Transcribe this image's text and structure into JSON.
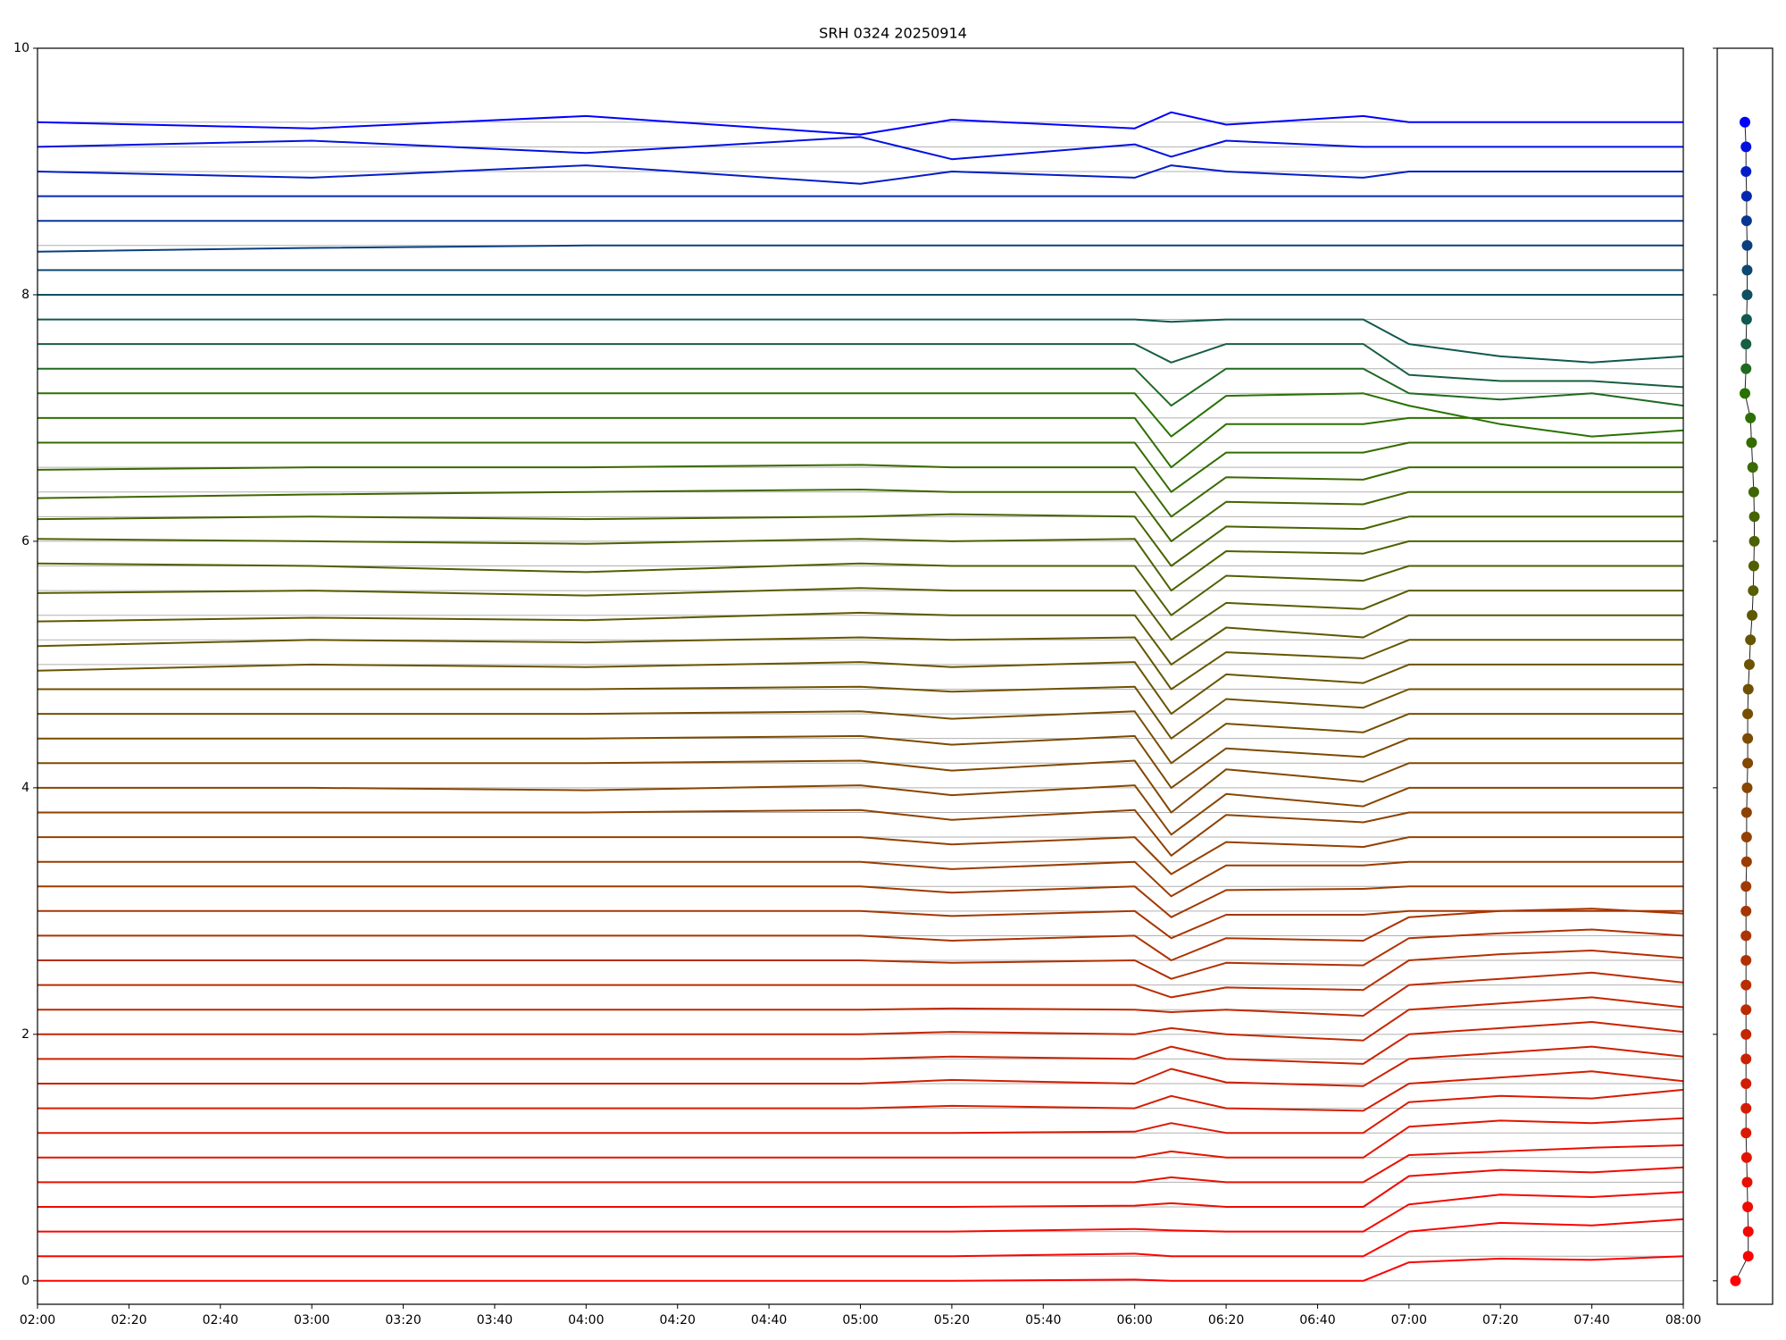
{
  "chart_data": [
    {
      "type": "line",
      "title": "SRH 0324 20250914",
      "x": [
        "02:00",
        "03:00",
        "04:00",
        "05:00",
        "05:20",
        "06:00",
        "06:08",
        "06:20",
        "06:50",
        "07:00",
        "07:20",
        "07:40",
        "08:00"
      ],
      "xlim": [
        "02:00",
        "08:00"
      ],
      "xticks": [
        "02:00",
        "02:20",
        "02:40",
        "03:00",
        "03:20",
        "03:40",
        "04:00",
        "04:20",
        "04:40",
        "05:00",
        "05:20",
        "05:40",
        "06:00",
        "06:20",
        "06:40",
        "07:00",
        "07:20",
        "07:40",
        "08:00"
      ],
      "ylim": [
        -0.19,
        10
      ],
      "yticks": [
        0,
        2,
        4,
        6,
        8,
        10
      ],
      "reference_lines": [
        0,
        0.2,
        0.4,
        0.6,
        0.8,
        1,
        1.2,
        1.4,
        1.6,
        1.8,
        2,
        2.2,
        2.4,
        2.6,
        2.8,
        3,
        3.2,
        3.4,
        3.6,
        3.8,
        4,
        4.2,
        4.4,
        4.6,
        4.8,
        5,
        5.2,
        5.4,
        5.6,
        5.8,
        6,
        6.2,
        6.4,
        6.6,
        6.8,
        7,
        7.2,
        7.4,
        7.6,
        7.8,
        8,
        8.2,
        8.4,
        8.6,
        8.8,
        9,
        9.2,
        9.4
      ],
      "series": [
        {
          "color": "#ff0000",
          "values": [
            0,
            0,
            0,
            0,
            0,
            0.01,
            0,
            0,
            0,
            0.15,
            0.18,
            0.17,
            0.2
          ]
        },
        {
          "color": "#fa0400",
          "values": [
            0.2,
            0.2,
            0.2,
            0.2,
            0.2,
            0.22,
            0.2,
            0.2,
            0.2,
            0.4,
            0.47,
            0.45,
            0.5
          ]
        },
        {
          "color": "#f40800",
          "values": [
            0.4,
            0.4,
            0.4,
            0.4,
            0.4,
            0.42,
            0.41,
            0.4,
            0.4,
            0.62,
            0.7,
            0.68,
            0.72
          ]
        },
        {
          "color": "#ee0c00",
          "values": [
            0.6,
            0.6,
            0.6,
            0.6,
            0.6,
            0.61,
            0.63,
            0.6,
            0.6,
            0.85,
            0.9,
            0.88,
            0.92
          ]
        },
        {
          "color": "#e81000",
          "values": [
            0.8,
            0.8,
            0.8,
            0.8,
            0.8,
            0.8,
            0.84,
            0.8,
            0.8,
            1.02,
            1.05,
            1.08,
            1.1
          ]
        },
        {
          "color": "#e21400",
          "values": [
            1,
            1,
            1,
            1,
            1,
            1,
            1.05,
            1,
            1,
            1.25,
            1.3,
            1.28,
            1.32
          ]
        },
        {
          "color": "#dc1800",
          "values": [
            1.2,
            1.2,
            1.2,
            1.2,
            1.2,
            1.21,
            1.28,
            1.2,
            1.2,
            1.45,
            1.5,
            1.48,
            1.55
          ]
        },
        {
          "color": "#d61c00",
          "values": [
            1.4,
            1.4,
            1.4,
            1.4,
            1.42,
            1.4,
            1.5,
            1.4,
            1.38,
            1.6,
            1.65,
            1.7,
            1.62
          ]
        },
        {
          "color": "#d01e00",
          "values": [
            1.6,
            1.6,
            1.6,
            1.6,
            1.63,
            1.6,
            1.72,
            1.61,
            1.58,
            1.8,
            1.85,
            1.9,
            1.82
          ]
        },
        {
          "color": "#ca2200",
          "values": [
            1.8,
            1.8,
            1.8,
            1.8,
            1.82,
            1.8,
            1.9,
            1.8,
            1.76,
            2,
            2.05,
            2.1,
            2.02
          ]
        },
        {
          "color": "#c42600",
          "values": [
            2,
            2,
            2,
            2,
            2.02,
            2,
            2.05,
            2,
            1.95,
            2.2,
            2.25,
            2.3,
            2.22
          ]
        },
        {
          "color": "#be2a00",
          "values": [
            2.2,
            2.2,
            2.2,
            2.2,
            2.21,
            2.2,
            2.18,
            2.2,
            2.15,
            2.4,
            2.45,
            2.5,
            2.42
          ]
        },
        {
          "color": "#b82e00",
          "values": [
            2.4,
            2.4,
            2.4,
            2.4,
            2.4,
            2.4,
            2.3,
            2.38,
            2.36,
            2.6,
            2.65,
            2.68,
            2.62
          ]
        },
        {
          "color": "#b23000",
          "values": [
            2.6,
            2.6,
            2.6,
            2.6,
            2.58,
            2.6,
            2.45,
            2.58,
            2.56,
            2.78,
            2.82,
            2.85,
            2.8
          ]
        },
        {
          "color": "#ac3400",
          "values": [
            2.8,
            2.8,
            2.8,
            2.8,
            2.76,
            2.8,
            2.6,
            2.78,
            2.76,
            2.95,
            3,
            3.02,
            2.98
          ]
        },
        {
          "color": "#a63600",
          "values": [
            3,
            3,
            3,
            3,
            2.96,
            3,
            2.78,
            2.97,
            2.97,
            3,
            3,
            3,
            3
          ]
        },
        {
          "color": "#a03a00",
          "values": [
            3.2,
            3.2,
            3.2,
            3.2,
            3.15,
            3.2,
            2.95,
            3.17,
            3.18,
            3.2,
            3.2,
            3.2,
            3.2
          ]
        },
        {
          "color": "#9a3c00",
          "values": [
            3.4,
            3.4,
            3.4,
            3.4,
            3.34,
            3.4,
            3.12,
            3.37,
            3.37,
            3.4,
            3.4,
            3.4,
            3.4
          ]
        },
        {
          "color": "#944000",
          "values": [
            3.6,
            3.6,
            3.6,
            3.6,
            3.54,
            3.6,
            3.3,
            3.56,
            3.52,
            3.6,
            3.6,
            3.6,
            3.6
          ]
        },
        {
          "color": "#8e4200",
          "values": [
            3.8,
            3.8,
            3.8,
            3.82,
            3.74,
            3.82,
            3.45,
            3.78,
            3.72,
            3.8,
            3.8,
            3.8,
            3.8
          ]
        },
        {
          "color": "#884600",
          "values": [
            4,
            4,
            3.98,
            4.02,
            3.94,
            4.02,
            3.62,
            3.95,
            3.85,
            4,
            4,
            4,
            4
          ]
        },
        {
          "color": "#824800",
          "values": [
            4.2,
            4.2,
            4.2,
            4.22,
            4.14,
            4.22,
            3.8,
            4.15,
            4.05,
            4.2,
            4.2,
            4.2,
            4.2
          ]
        },
        {
          "color": "#7c4a00",
          "values": [
            4.4,
            4.4,
            4.4,
            4.42,
            4.35,
            4.42,
            4,
            4.32,
            4.25,
            4.4,
            4.4,
            4.4,
            4.4
          ]
        },
        {
          "color": "#764e00",
          "values": [
            4.6,
            4.6,
            4.6,
            4.62,
            4.56,
            4.62,
            4.2,
            4.52,
            4.45,
            4.6,
            4.6,
            4.6,
            4.6
          ]
        },
        {
          "color": "#705000",
          "values": [
            4.8,
            4.8,
            4.8,
            4.82,
            4.78,
            4.82,
            4.4,
            4.72,
            4.65,
            4.8,
            4.8,
            4.8,
            4.8
          ]
        },
        {
          "color": "#6a5400",
          "values": [
            4.95,
            5,
            4.98,
            5.02,
            4.98,
            5.02,
            4.6,
            4.92,
            4.85,
            5,
            5,
            5,
            5
          ]
        },
        {
          "color": "#645600",
          "values": [
            5.15,
            5.2,
            5.18,
            5.22,
            5.2,
            5.22,
            4.8,
            5.1,
            5.05,
            5.2,
            5.2,
            5.2,
            5.2
          ]
        },
        {
          "color": "#5e5800",
          "values": [
            5.35,
            5.38,
            5.36,
            5.42,
            5.4,
            5.4,
            5,
            5.3,
            5.22,
            5.4,
            5.4,
            5.4,
            5.4
          ]
        },
        {
          "color": "#585c00",
          "values": [
            5.58,
            5.6,
            5.56,
            5.62,
            5.6,
            5.6,
            5.2,
            5.5,
            5.45,
            5.6,
            5.6,
            5.6,
            5.6
          ]
        },
        {
          "color": "#525e00",
          "values": [
            5.82,
            5.8,
            5.75,
            5.82,
            5.8,
            5.8,
            5.4,
            5.72,
            5.68,
            5.8,
            5.8,
            5.8,
            5.8
          ]
        },
        {
          "color": "#4c6200",
          "values": [
            6.02,
            6,
            5.98,
            6.02,
            6,
            6.02,
            5.6,
            5.92,
            5.9,
            6,
            6,
            6,
            6
          ]
        },
        {
          "color": "#466400",
          "values": [
            6.18,
            6.2,
            6.18,
            6.2,
            6.22,
            6.2,
            5.8,
            6.12,
            6.1,
            6.2,
            6.2,
            6.2,
            6.2
          ]
        },
        {
          "color": "#406600",
          "values": [
            6.35,
            6.38,
            6.4,
            6.42,
            6.4,
            6.4,
            6,
            6.32,
            6.3,
            6.4,
            6.4,
            6.4,
            6.4
          ]
        },
        {
          "color": "#3a6a00",
          "values": [
            6.58,
            6.6,
            6.6,
            6.62,
            6.6,
            6.6,
            6.2,
            6.52,
            6.5,
            6.6,
            6.6,
            6.6,
            6.6
          ]
        },
        {
          "color": "#346c00",
          "values": [
            6.8,
            6.8,
            6.8,
            6.8,
            6.8,
            6.8,
            6.4,
            6.72,
            6.72,
            6.8,
            6.8,
            6.8,
            6.8
          ]
        },
        {
          "color": "#2e7000",
          "values": [
            7,
            7,
            7,
            7,
            7,
            7,
            6.6,
            6.95,
            6.95,
            7,
            7,
            7,
            7
          ]
        },
        {
          "color": "#287200",
          "values": [
            7.2,
            7.2,
            7.2,
            7.2,
            7.2,
            7.2,
            6.85,
            7.18,
            7.2,
            7.1,
            6.95,
            6.85,
            6.9
          ]
        },
        {
          "color": "#1f6a20",
          "values": [
            7.4,
            7.4,
            7.4,
            7.4,
            7.4,
            7.4,
            7.1,
            7.4,
            7.4,
            7.2,
            7.15,
            7.2,
            7.1
          ]
        },
        {
          "color": "#175f40",
          "values": [
            7.6,
            7.6,
            7.6,
            7.6,
            7.6,
            7.6,
            7.45,
            7.6,
            7.6,
            7.35,
            7.3,
            7.3,
            7.25
          ]
        },
        {
          "color": "#105850",
          "values": [
            7.8,
            7.8,
            7.8,
            7.8,
            7.8,
            7.8,
            7.78,
            7.8,
            7.8,
            7.6,
            7.5,
            7.45,
            7.5
          ]
        },
        {
          "color": "#0e5060",
          "values": [
            8,
            8,
            8,
            8,
            8,
            8,
            8,
            8,
            8,
            8,
            8,
            8,
            8
          ]
        },
        {
          "color": "#0c4870",
          "values": [
            8.2,
            8.2,
            8.2,
            8.2,
            8.2,
            8.2,
            8.2,
            8.2,
            8.2,
            8.2,
            8.2,
            8.2,
            8.2
          ]
        },
        {
          "color": "#0a4080",
          "values": [
            8.35,
            8.38,
            8.4,
            8.4,
            8.4,
            8.4,
            8.4,
            8.4,
            8.4,
            8.4,
            8.4,
            8.4,
            8.4
          ]
        },
        {
          "color": "#083494",
          "values": [
            8.6,
            8.6,
            8.6,
            8.6,
            8.6,
            8.6,
            8.6,
            8.6,
            8.6,
            8.6,
            8.6,
            8.6,
            8.6
          ]
        },
        {
          "color": "#0628b0",
          "values": [
            8.8,
            8.8,
            8.8,
            8.8,
            8.8,
            8.8,
            8.8,
            8.8,
            8.8,
            8.8,
            8.8,
            8.8,
            8.8
          ]
        },
        {
          "color": "#041cc8",
          "values": [
            9,
            8.95,
            9.05,
            8.9,
            9,
            8.95,
            9.05,
            9,
            8.95,
            9,
            9,
            9,
            9
          ]
        },
        {
          "color": "#0210e0",
          "values": [
            9.2,
            9.25,
            9.15,
            9.28,
            9.1,
            9.22,
            9.12,
            9.25,
            9.2,
            9.2,
            9.2,
            9.2,
            9.2
          ]
        },
        {
          "color": "#0000ff",
          "values": [
            9.4,
            9.35,
            9.45,
            9.3,
            9.42,
            9.35,
            9.48,
            9.38,
            9.45,
            9.4,
            9.4,
            9.4,
            9.4
          ]
        }
      ]
    },
    {
      "type": "scatter",
      "x": [
        0.33,
        0.56,
        0.56,
        0.55,
        0.54,
        0.53,
        0.52,
        0.52,
        0.52,
        0.52,
        0.52,
        0.52,
        0.52,
        0.52,
        0.52,
        0.52,
        0.52,
        0.53,
        0.53,
        0.53,
        0.54,
        0.55,
        0.55,
        0.55,
        0.56,
        0.58,
        0.6,
        0.63,
        0.65,
        0.66,
        0.67,
        0.67,
        0.66,
        0.64,
        0.62,
        0.6,
        0.5,
        0.52,
        0.52,
        0.53,
        0.54,
        0.54,
        0.54,
        0.53,
        0.53,
        0.52,
        0.52,
        0.5
      ],
      "y": [
        0,
        0.2,
        0.4,
        0.6,
        0.8,
        1,
        1.2,
        1.4,
        1.6,
        1.8,
        2,
        2.2,
        2.4,
        2.6,
        2.8,
        3,
        3.2,
        3.4,
        3.6,
        3.8,
        4,
        4.2,
        4.4,
        4.6,
        4.8,
        5,
        5.2,
        5.4,
        5.6,
        5.8,
        6,
        6.2,
        6.4,
        6.6,
        6.8,
        7,
        7.2,
        7.4,
        7.6,
        7.8,
        8,
        8.2,
        8.4,
        8.6,
        8.8,
        9,
        9.2,
        9.4
      ],
      "xlim": [
        0,
        1
      ],
      "ylim": [
        -0.19,
        10
      ],
      "yticks": [
        0,
        2,
        4,
        6,
        8,
        10
      ]
    }
  ]
}
